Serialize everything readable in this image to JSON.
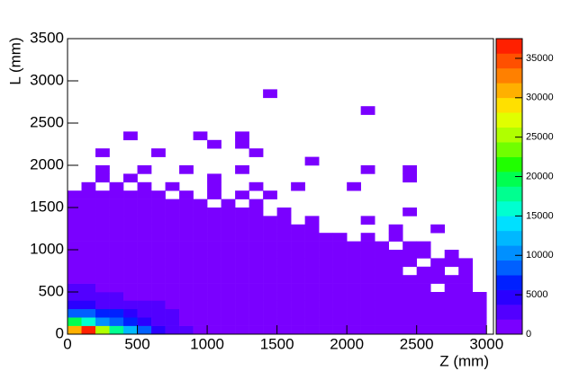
{
  "chart_data": {
    "type": "hist2d",
    "xlabel": "Z (mm)",
    "ylabel": "L (mm)",
    "xlim": [
      0,
      3050
    ],
    "ylim": [
      0,
      3500
    ],
    "zlim": [
      0,
      37500
    ],
    "xticks": [
      0,
      500,
      1000,
      1500,
      2000,
      2500,
      3000
    ],
    "yticks": [
      0,
      500,
      1000,
      1500,
      2000,
      2500,
      3000,
      3500
    ],
    "zticks": [
      0,
      5000,
      10000,
      15000,
      20000,
      25000,
      30000,
      35000
    ],
    "palette": [
      "#7a00ff",
      "#5200ff",
      "#2a00ff",
      "#0020ff",
      "#0060ff",
      "#0090ff",
      "#00b8ff",
      "#00e0ff",
      "#00ffd0",
      "#00ff90",
      "#00ff50",
      "#20ff00",
      "#70ff00",
      "#b0ff00",
      "#e0ff00",
      "#ffe000",
      "#ffb000",
      "#ff8000",
      "#ff5000",
      "#ff2000"
    ],
    "xbins": [
      0,
      100,
      200,
      300,
      400,
      500,
      600,
      700,
      800,
      900,
      1000,
      1100,
      1200,
      1300,
      1400,
      1500,
      1600,
      1700,
      1800,
      1900,
      2000,
      2100,
      2200,
      2300,
      2400,
      2500,
      2600,
      2700,
      2800,
      2900,
      3000
    ],
    "ybins": [
      0,
      100,
      200,
      300,
      400,
      500,
      600,
      700,
      800,
      900,
      1000,
      1100,
      1200,
      1300,
      1400,
      1500,
      1600,
      1700,
      1800,
      1900,
      2000,
      2100,
      2200,
      2300,
      2400,
      2500,
      2600,
      2700,
      2800,
      2900,
      3000,
      3100,
      3200,
      3300,
      3400,
      3500
    ],
    "z": [
      [
        30000,
        37000,
        26000,
        18000,
        12000,
        8000,
        5000,
        3500,
        2500,
        1800,
        1500,
        1200,
        1000,
        900,
        800,
        700,
        650,
        600,
        550,
        500,
        450,
        400,
        380,
        350,
        320,
        300,
        280,
        260,
        240,
        200
      ],
      [
        20000,
        15000,
        11000,
        9000,
        7000,
        5000,
        3500,
        2500,
        1800,
        1400,
        1200,
        1000,
        900,
        800,
        700,
        650,
        600,
        550,
        500,
        450,
        420,
        400,
        380,
        350,
        320,
        300,
        280,
        260,
        240,
        200
      ],
      [
        9000,
        8000,
        7000,
        6000,
        4500,
        3500,
        2600,
        2000,
        1600,
        1300,
        1100,
        950,
        850,
        750,
        700,
        650,
        600,
        550,
        500,
        450,
        420,
        400,
        380,
        350,
        320,
        300,
        280,
        260,
        240,
        200
      ],
      [
        4000,
        3800,
        3500,
        3000,
        2600,
        2200,
        1900,
        1600,
        1400,
        1200,
        1000,
        900,
        800,
        750,
        700,
        650,
        600,
        550,
        500,
        450,
        420,
        400,
        380,
        350,
        320,
        300,
        280,
        260,
        240,
        200
      ],
      [
        2500,
        2400,
        2200,
        2000,
        1800,
        1600,
        1400,
        1200,
        1100,
        1000,
        900,
        800,
        700,
        650,
        600,
        550,
        500,
        450,
        420,
        400,
        380,
        350,
        320,
        300,
        280,
        260,
        240,
        220,
        200,
        150
      ],
      [
        2000,
        1900,
        1800,
        1700,
        1500,
        1300,
        1200,
        1000,
        900,
        800,
        700,
        650,
        600,
        550,
        500,
        450,
        420,
        400,
        380,
        350,
        300,
        280,
        260,
        240,
        220,
        200,
        0,
        180,
        150,
        0
      ],
      [
        1800,
        1700,
        1600,
        1500,
        1300,
        1100,
        1000,
        900,
        800,
        700,
        650,
        600,
        550,
        500,
        450,
        400,
        380,
        350,
        320,
        300,
        280,
        260,
        240,
        220,
        200,
        180,
        160,
        150,
        120,
        0
      ],
      [
        1600,
        1500,
        1400,
        1300,
        1100,
        1000,
        900,
        800,
        700,
        650,
        600,
        550,
        500,
        450,
        400,
        380,
        350,
        320,
        300,
        280,
        260,
        240,
        220,
        200,
        0,
        160,
        150,
        0,
        100,
        0
      ],
      [
        1400,
        1300,
        1200,
        1100,
        1000,
        900,
        800,
        700,
        650,
        600,
        550,
        500,
        450,
        400,
        380,
        350,
        320,
        300,
        280,
        260,
        240,
        220,
        200,
        180,
        160,
        0,
        120,
        100,
        80,
        0
      ],
      [
        1200,
        1100,
        1000,
        950,
        900,
        800,
        700,
        650,
        600,
        550,
        500,
        450,
        400,
        380,
        350,
        320,
        300,
        280,
        260,
        240,
        220,
        200,
        180,
        160,
        140,
        120,
        0,
        80,
        0,
        0
      ],
      [
        1000,
        950,
        900,
        850,
        800,
        700,
        650,
        600,
        550,
        500,
        450,
        400,
        380,
        350,
        320,
        300,
        280,
        260,
        240,
        220,
        200,
        180,
        160,
        0,
        120,
        100,
        0,
        0,
        0,
        0
      ],
      [
        900,
        850,
        800,
        750,
        700,
        650,
        600,
        550,
        500,
        450,
        400,
        380,
        350,
        320,
        300,
        280,
        260,
        240,
        220,
        200,
        0,
        150,
        0,
        100,
        0,
        0,
        0,
        0,
        0,
        0
      ],
      [
        800,
        750,
        700,
        650,
        600,
        550,
        500,
        450,
        400,
        380,
        350,
        320,
        300,
        280,
        260,
        240,
        200,
        180,
        0,
        0,
        0,
        0,
        0,
        50,
        0,
        0,
        50,
        0,
        0,
        0
      ],
      [
        700,
        650,
        600,
        550,
        500,
        450,
        400,
        350,
        320,
        300,
        280,
        260,
        240,
        200,
        180,
        150,
        0,
        100,
        0,
        0,
        0,
        40,
        0,
        0,
        0,
        0,
        0,
        0,
        0,
        0
      ],
      [
        600,
        550,
        500,
        450,
        400,
        380,
        350,
        300,
        280,
        260,
        240,
        200,
        180,
        150,
        0,
        80,
        0,
        0,
        0,
        0,
        0,
        0,
        0,
        0,
        30,
        0,
        0,
        0,
        0,
        0
      ],
      [
        500,
        450,
        400,
        350,
        300,
        280,
        250,
        200,
        180,
        150,
        0,
        120,
        0,
        80,
        0,
        0,
        0,
        0,
        0,
        0,
        0,
        0,
        0,
        0,
        0,
        0,
        0,
        0,
        0,
        0
      ],
      [
        300,
        250,
        200,
        180,
        150,
        120,
        100,
        0,
        80,
        0,
        60,
        0,
        50,
        0,
        40,
        0,
        0,
        0,
        0,
        0,
        0,
        0,
        0,
        0,
        0,
        0,
        0,
        0,
        0,
        0
      ],
      [
        0,
        40,
        0,
        30,
        0,
        30,
        0,
        20,
        0,
        0,
        20,
        0,
        0,
        20,
        0,
        0,
        20,
        0,
        0,
        0,
        20,
        0,
        0,
        0,
        0,
        0,
        0,
        0,
        0,
        0
      ],
      [
        0,
        0,
        20,
        0,
        20,
        0,
        0,
        0,
        0,
        0,
        20,
        0,
        0,
        0,
        0,
        0,
        0,
        0,
        0,
        0,
        0,
        0,
        0,
        0,
        20,
        0,
        0,
        0,
        0,
        0
      ],
      [
        0,
        0,
        10,
        0,
        0,
        10,
        0,
        0,
        10,
        0,
        0,
        0,
        10,
        0,
        0,
        0,
        0,
        0,
        0,
        0,
        0,
        10,
        0,
        0,
        10,
        0,
        0,
        0,
        0,
        0
      ],
      [
        0,
        0,
        0,
        0,
        0,
        0,
        0,
        0,
        0,
        0,
        0,
        0,
        0,
        0,
        0,
        0,
        0,
        10,
        0,
        0,
        0,
        0,
        0,
        0,
        0,
        0,
        0,
        0,
        0,
        0
      ],
      [
        0,
        0,
        10,
        0,
        0,
        0,
        10,
        0,
        0,
        0,
        0,
        0,
        0,
        10,
        0,
        0,
        0,
        0,
        0,
        0,
        0,
        0,
        0,
        0,
        0,
        0,
        0,
        0,
        0,
        0
      ],
      [
        0,
        0,
        0,
        0,
        0,
        0,
        0,
        0,
        0,
        0,
        10,
        0,
        10,
        0,
        0,
        0,
        0,
        0,
        0,
        0,
        0,
        0,
        0,
        0,
        0,
        0,
        0,
        0,
        0,
        0
      ],
      [
        0,
        0,
        0,
        0,
        10,
        0,
        0,
        0,
        0,
        10,
        0,
        0,
        10,
        0,
        0,
        0,
        0,
        0,
        0,
        0,
        0,
        0,
        0,
        0,
        0,
        0,
        0,
        0,
        0,
        0
      ],
      [
        0,
        0,
        0,
        0,
        0,
        0,
        0,
        0,
        0,
        0,
        0,
        0,
        0,
        0,
        0,
        0,
        0,
        0,
        0,
        0,
        0,
        0,
        0,
        0,
        0,
        0,
        0,
        0,
        0,
        0
      ],
      [
        0,
        0,
        0,
        0,
        0,
        0,
        0,
        0,
        0,
        0,
        0,
        0,
        0,
        0,
        0,
        0,
        0,
        0,
        0,
        0,
        0,
        0,
        0,
        0,
        0,
        0,
        0,
        0,
        0,
        0
      ],
      [
        0,
        0,
        0,
        0,
        0,
        0,
        0,
        0,
        0,
        0,
        0,
        0,
        0,
        0,
        0,
        0,
        0,
        0,
        0,
        0,
        0,
        10,
        0,
        0,
        0,
        0,
        0,
        0,
        0,
        0
      ],
      [
        0,
        0,
        0,
        0,
        0,
        0,
        0,
        0,
        0,
        0,
        0,
        0,
        0,
        0,
        0,
        0,
        0,
        0,
        0,
        0,
        0,
        0,
        0,
        0,
        0,
        0,
        0,
        0,
        0,
        0
      ],
      [
        0,
        0,
        0,
        0,
        0,
        0,
        0,
        0,
        0,
        0,
        0,
        0,
        0,
        0,
        10,
        0,
        0,
        0,
        0,
        0,
        0,
        0,
        0,
        0,
        0,
        0,
        0,
        0,
        0,
        0
      ],
      [
        0,
        0,
        0,
        0,
        0,
        0,
        0,
        0,
        0,
        0,
        0,
        0,
        0,
        0,
        0,
        0,
        0,
        0,
        0,
        0,
        0,
        0,
        0,
        0,
        0,
        0,
        0,
        0,
        0,
        0
      ],
      [
        0,
        0,
        0,
        0,
        0,
        0,
        0,
        0,
        0,
        0,
        0,
        0,
        0,
        0,
        0,
        0,
        0,
        0,
        0,
        0,
        0,
        0,
        0,
        0,
        0,
        0,
        0,
        0,
        0,
        0
      ],
      [
        0,
        0,
        0,
        0,
        0,
        0,
        0,
        0,
        0,
        0,
        0,
        0,
        0,
        0,
        0,
        0,
        0,
        0,
        0,
        0,
        0,
        0,
        0,
        0,
        0,
        0,
        0,
        0,
        0,
        0
      ],
      [
        0,
        0,
        0,
        0,
        0,
        0,
        0,
        0,
        0,
        0,
        0,
        0,
        0,
        0,
        0,
        0,
        0,
        0,
        0,
        0,
        0,
        0,
        0,
        0,
        0,
        0,
        0,
        0,
        0,
        0
      ],
      [
        0,
        0,
        0,
        0,
        0,
        0,
        0,
        0,
        0,
        0,
        0,
        0,
        0,
        0,
        0,
        0,
        0,
        0,
        0,
        0,
        0,
        0,
        0,
        0,
        0,
        0,
        0,
        0,
        0,
        0
      ],
      [
        0,
        0,
        0,
        0,
        0,
        0,
        0,
        0,
        0,
        0,
        0,
        0,
        0,
        0,
        0,
        0,
        0,
        0,
        0,
        0,
        0,
        0,
        0,
        0,
        0,
        0,
        0,
        0,
        0,
        0
      ]
    ]
  }
}
